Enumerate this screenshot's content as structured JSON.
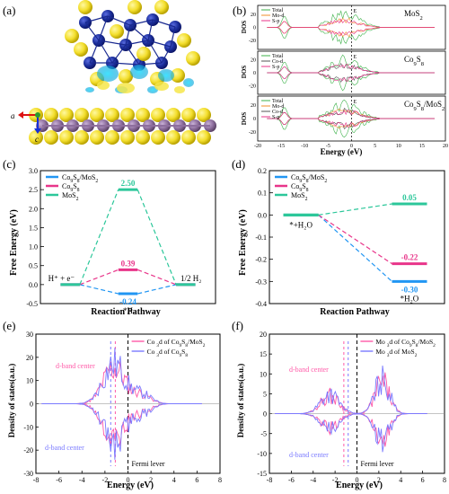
{
  "panels": {
    "a": {
      "letter": "(a)",
      "axis_a": "a",
      "axis_c": "c"
    },
    "b": {
      "letter": "(b)",
      "ylabel": "DOS",
      "xlabel": "Energy (eV)",
      "fermi": "E_F",
      "sub": [
        {
          "title": "MoS2",
          "legend": [
            "Total",
            "Mo-d",
            "S-p"
          ]
        },
        {
          "title": "Co9S8",
          "legend": [
            "Total",
            "Co-d",
            "S-p"
          ]
        },
        {
          "title": "Co9S8/MoS2",
          "legend": [
            "Total",
            "Mo-d",
            "Co-d",
            "S-p"
          ]
        }
      ]
    },
    "c": {
      "letter": "(c)",
      "ylabel": "Free Energy (eV)",
      "xlabel": "Reaction Pathway",
      "legend": [
        "Co9S8/MoS2",
        "Co9S8",
        "MoS2"
      ],
      "left_state": "H⁺ + e⁻",
      "mid_state": "*H",
      "right_state": "1/2 H₂"
    },
    "d": {
      "letter": "(d)",
      "ylabel": "Free Energy (eV)",
      "xlabel": "Reaction Pathway",
      "legend": [
        "Co9S8/MoS2",
        "Co9S8",
        "MoS2"
      ],
      "left_state": "*+H₂O",
      "right_state": "*H₂O"
    },
    "e": {
      "letter": "(e)",
      "ylabel": "Density of states(a.u.)",
      "xlabel": "Energy (eV)",
      "legend": [
        "Co 3d of Co9S8/MoS2",
        "Co 3d of Co9S8"
      ],
      "ann_top": "d-band center",
      "ann_bottom": "d-band center",
      "fermi": "Fermi lever"
    },
    "f": {
      "letter": "(f)",
      "ylabel": "Density of states(a.u.)",
      "xlabel": "Energy (eV)",
      "legend": [
        "Mo 3d of Co9S8/MoS2",
        "Mo 3d of MoS2"
      ],
      "ann_top": "d-band center",
      "ann_bottom": "d-band center",
      "fermi": "Fermi lever"
    }
  },
  "colors": {
    "blue": "#2196f3",
    "pink": "#e8358a",
    "green": "#2cc79a",
    "pinkline": "#ff5aa8",
    "blueline": "#7a7aff"
  },
  "chart_data": [
    {
      "type": "line",
      "panel": "c",
      "series": [
        {
          "name": "Co9S8/MoS2",
          "values": [
            0,
            -0.24,
            0
          ]
        },
        {
          "name": "Co9S8",
          "values": [
            0,
            0.39,
            0
          ]
        },
        {
          "name": "MoS2",
          "values": [
            0,
            2.5,
            0
          ]
        }
      ],
      "value_labels": [
        "-0.24",
        "0.39",
        "2.50"
      ],
      "yticks": [
        "-0.5",
        "0.0",
        "0.5",
        "1.0",
        "1.5",
        "2.0",
        "2.5",
        "3.0"
      ],
      "ylim": [
        -0.5,
        3.0
      ]
    },
    {
      "type": "line",
      "panel": "d",
      "series": [
        {
          "name": "Co9S8/MoS2",
          "values": [
            0,
            -0.3
          ]
        },
        {
          "name": "Co9S8",
          "values": [
            0,
            -0.22
          ]
        },
        {
          "name": "MoS2",
          "values": [
            0,
            0.05
          ]
        }
      ],
      "value_labels": [
        "-0.30",
        "-0.22",
        "0.05"
      ],
      "yticks": [
        "-0.4",
        "-0.3",
        "-0.2",
        "-0.1",
        "0.0",
        "0.1",
        "0.2"
      ],
      "ylim": [
        -0.4,
        0.2
      ]
    },
    {
      "type": "line",
      "panel": "e",
      "xticks": [
        "-8",
        "-6",
        "-4",
        "-2",
        "0",
        "2",
        "4",
        "6",
        "8"
      ],
      "yticks": [
        "-30",
        "-20",
        "-10",
        "0",
        "10",
        "20",
        "30"
      ],
      "xlim": [
        -8,
        8
      ],
      "ylim": [
        -30,
        30
      ],
      "d_band_centers": [
        -1.1,
        -1.5
      ]
    },
    {
      "type": "line",
      "panel": "f",
      "xticks": [
        "-8",
        "-6",
        "-4",
        "-2",
        "0",
        "2",
        "4",
        "6",
        "8"
      ],
      "yticks": [
        "-15",
        "-10",
        "-5",
        "0",
        "5",
        "10",
        "15",
        "20"
      ],
      "xlim": [
        -8,
        8
      ],
      "ylim": [
        -15,
        20
      ],
      "d_band_centers": [
        -1.2,
        -0.8
      ]
    },
    {
      "type": "line",
      "panel": "b",
      "xticks": [
        "-20",
        "-15",
        "-10",
        "-5",
        "0",
        "5",
        "10",
        "15",
        "20"
      ],
      "xlim": [
        -20,
        20
      ],
      "yticks": [
        "-20",
        "0",
        "20"
      ]
    }
  ]
}
